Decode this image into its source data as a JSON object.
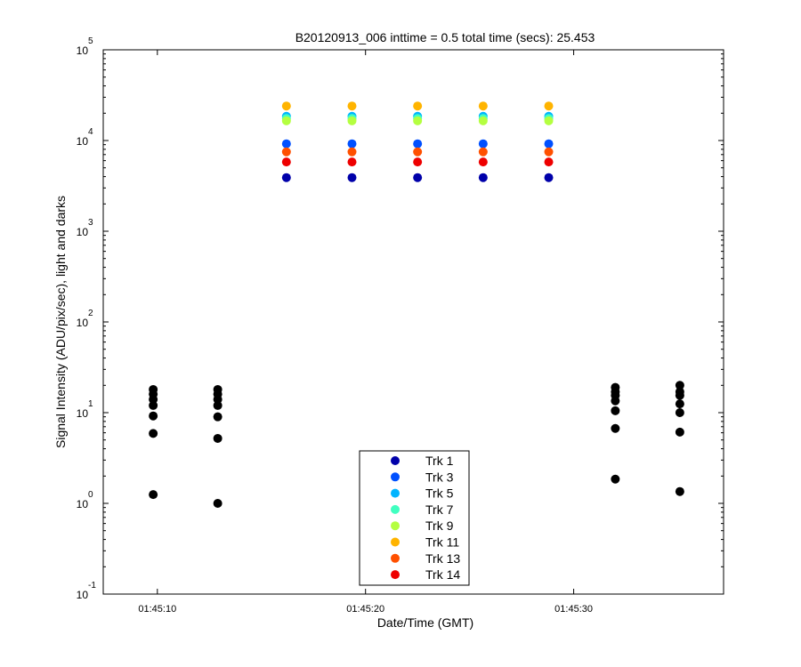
{
  "chart_data": {
    "type": "scatter",
    "title": "B20120913_006 inttime = 0.5 total time (secs): 25.453",
    "xlabel": "Date/Time (GMT)",
    "ylabel": "Signal Intensity (ADU/pix/sec), light and darks",
    "y_scale": "log",
    "ylim": [
      0.1,
      100000
    ],
    "xlim": [
      "01:45:07.4",
      "01:45:37.2"
    ],
    "grid": false,
    "legend_position": "bottom-center",
    "x_ticks": [
      "01:45:10",
      "01:45:20",
      "01:45:30"
    ],
    "y_ticks": [
      {
        "value": 0.1,
        "base": "10",
        "exp": "-1"
      },
      {
        "value": 1,
        "base": "10",
        "exp": "0"
      },
      {
        "value": 10,
        "base": "10",
        "exp": "1"
      },
      {
        "value": 100,
        "base": "10",
        "exp": "2"
      },
      {
        "value": 1000,
        "base": "10",
        "exp": "3"
      },
      {
        "value": 10000,
        "base": "10",
        "exp": "4"
      },
      {
        "value": 100000,
        "base": "10",
        "exp": "5"
      }
    ],
    "light_times": [
      "01:45:16.2",
      "01:45:19.35",
      "01:45:22.5",
      "01:45:25.65",
      "01:45:28.8"
    ],
    "series": [
      {
        "name": "Trk 1",
        "color": "#0000aa",
        "value": 3900
      },
      {
        "name": "Trk 3",
        "color": "#0050ff",
        "value": 9200
      },
      {
        "name": "Trk 5",
        "color": "#00b4ff",
        "value": 18500
      },
      {
        "name": "Trk 7",
        "color": "#40ffc0",
        "value": 17500
      },
      {
        "name": "Trk 9",
        "color": "#b4ff40",
        "value": 16500
      },
      {
        "name": "Trk 11",
        "color": "#ffb400",
        "value": 24000
      },
      {
        "name": "Trk 13",
        "color": "#ff5000",
        "value": 7500
      },
      {
        "name": "Trk 14",
        "color": "#ee0000",
        "value": 5800
      }
    ],
    "darks": {
      "color": "#000000",
      "groups": [
        {
          "x": "01:45:09.8",
          "values": [
            18,
            16,
            14,
            12,
            9.2,
            5.9,
            1.25
          ]
        },
        {
          "x": "01:45:12.9",
          "values": [
            18,
            16,
            14,
            12,
            9,
            5.2,
            1
          ]
        },
        {
          "x": "01:45:32.0",
          "values": [
            19,
            17,
            15.5,
            13.5,
            10.5,
            6.7,
            1.85
          ]
        },
        {
          "x": "01:45:35.1",
          "values": [
            20,
            17,
            15.5,
            12.5,
            10,
            6.1,
            1.35
          ]
        }
      ]
    }
  }
}
